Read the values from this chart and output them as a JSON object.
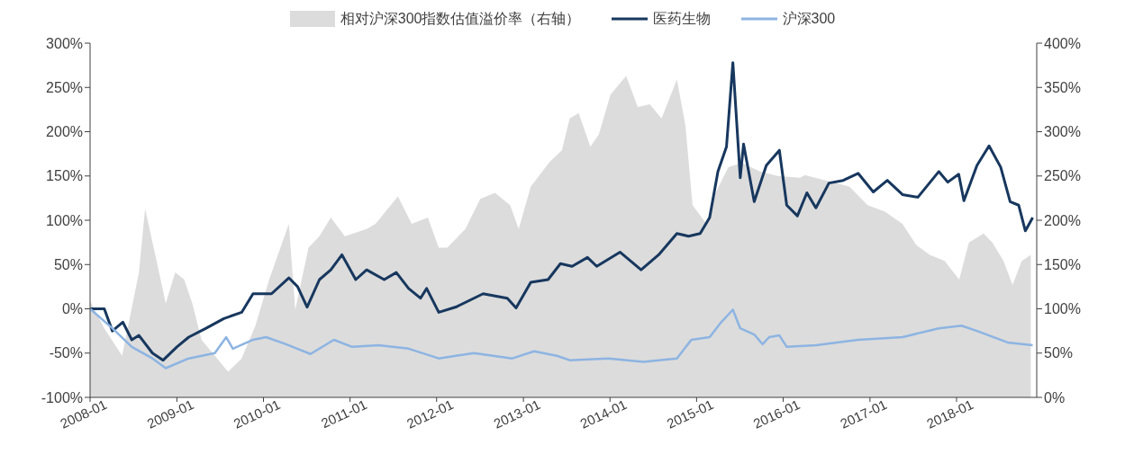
{
  "chart_data": {
    "type": "line",
    "legend": "top",
    "xlim": [
      "2008-01-01",
      "2018-12-05"
    ],
    "xticks": [
      "2008-01",
      "2009-01",
      "2010-01",
      "2011-01",
      "2012-01",
      "2013-01",
      "2014-01",
      "2015-01",
      "2016-01",
      "2017-01",
      "2018-01"
    ],
    "ylim": [
      -100,
      300
    ],
    "yticks": [
      {
        "value": -100,
        "label": "-100%"
      },
      {
        "value": -50,
        "label": "-50%"
      },
      {
        "value": 0,
        "label": "0%"
      },
      {
        "value": 50,
        "label": "50%"
      },
      {
        "value": 100,
        "label": "100%"
      },
      {
        "value": 150,
        "label": "150%"
      },
      {
        "value": 200,
        "label": "200%"
      },
      {
        "value": 250,
        "label": "250%"
      },
      {
        "value": 300,
        "label": "300%"
      }
    ],
    "y2lim": [
      0,
      400
    ],
    "y2ticks": [
      {
        "value": 0,
        "label": "0%"
      },
      {
        "value": 50,
        "label": "50%"
      },
      {
        "value": 100,
        "label": "100%"
      },
      {
        "value": 150,
        "label": "150%"
      },
      {
        "value": 200,
        "label": "200%"
      },
      {
        "value": 250,
        "label": "250%"
      },
      {
        "value": 300,
        "label": "300%"
      },
      {
        "value": 350,
        "label": "350%"
      },
      {
        "value": 400,
        "label": "400%"
      }
    ],
    "series": [
      {
        "name": "相对沪深300指数估值溢价率（右轴）",
        "type": "area",
        "axis": "y2",
        "color": "#dcdcdc",
        "x": [
          "2008-01-01",
          "2008-03-01",
          "2008-05-15",
          "2008-07-25",
          "2008-08-20",
          "2008-10-10",
          "2008-11-15",
          "2008-12-25",
          "2009-02-01",
          "2009-03-07",
          "2009-04-15",
          "2009-08-05",
          "2009-10-01",
          "2009-11-28",
          "2010-01-25",
          "2010-04-18",
          "2010-05-15",
          "2010-07-10",
          "2010-08-25",
          "2010-10-12",
          "2010-12-10",
          "2011-03-12",
          "2011-04-18",
          "2011-07-22",
          "2011-09-18",
          "2011-11-25",
          "2012-01-10",
          "2012-02-15",
          "2012-05-01",
          "2012-07-03",
          "2012-09-03",
          "2012-11-06",
          "2012-12-12",
          "2013-02-01",
          "2013-04-22",
          "2013-06-12",
          "2013-07-15",
          "2013-08-22",
          "2013-10-10",
          "2013-11-15",
          "2014-01-03",
          "2014-03-10",
          "2014-04-28",
          "2014-06-18",
          "2014-08-06",
          "2014-10-10",
          "2014-11-15",
          "2014-12-15",
          "2015-02-12",
          "2015-03-20",
          "2015-05-15",
          "2015-07-10",
          "2015-09-25",
          "2015-12-10",
          "2016-03-12",
          "2016-04-01",
          "2016-10-06",
          "2016-12-22",
          "2017-03-04",
          "2017-05-18",
          "2017-07-15",
          "2017-09-10",
          "2017-11-12",
          "2018-01-12",
          "2018-02-22",
          "2018-04-25",
          "2018-06-01",
          "2018-07-18",
          "2018-08-25",
          "2018-10-03",
          "2018-11-10"
        ],
        "values": [
          109,
          78,
          47,
          141,
          213,
          151,
          106,
          141,
          133,
          106,
          65,
          29,
          44,
          81,
          133,
          196,
          99,
          169,
          182,
          203,
          182,
          190,
          196,
          227,
          196,
          203,
          169,
          169,
          190,
          224,
          231,
          217,
          190,
          238,
          266,
          279,
          315,
          321,
          283,
          297,
          342,
          363,
          328,
          331,
          315,
          359,
          307,
          217,
          196,
          230,
          260,
          265,
          255,
          250,
          248,
          251,
          238,
          217,
          210,
          196,
          172,
          161,
          154,
          133,
          175,
          185,
          175,
          154,
          127,
          154,
          161
        ]
      },
      {
        "name": "医药生物",
        "color": "#17375e",
        "x": [
          "2008-01-01",
          "2008-03-01",
          "2008-04-04",
          "2008-05-18",
          "2008-06-25",
          "2008-07-25",
          "2008-09-20",
          "2008-11-04",
          "2009-01-01",
          "2009-02-20",
          "2009-05-04",
          "2009-07-18",
          "2009-10-01",
          "2009-11-18",
          "2010-02-04",
          "2010-04-18",
          "2010-05-25",
          "2010-07-04",
          "2010-08-25",
          "2010-10-12",
          "2010-11-28",
          "2011-01-25",
          "2011-03-12",
          "2011-05-25",
          "2011-07-15",
          "2011-09-05",
          "2011-10-25",
          "2011-11-20",
          "2012-01-10",
          "2012-03-22",
          "2012-07-15",
          "2012-10-25",
          "2012-12-01",
          "2013-02-01",
          "2013-04-15",
          "2013-06-06",
          "2013-07-25",
          "2013-09-28",
          "2013-11-06",
          "2014-02-12",
          "2014-05-12",
          "2014-07-25",
          "2014-10-10",
          "2014-11-28",
          "2015-01-16",
          "2015-02-25",
          "2015-04-01",
          "2015-05-07",
          "2015-06-03",
          "2015-07-04",
          "2015-07-18",
          "2015-09-01",
          "2015-10-22",
          "2015-12-16",
          "2016-01-16",
          "2016-03-01",
          "2016-04-10",
          "2016-05-18",
          "2016-07-12",
          "2016-09-10",
          "2016-11-12",
          "2017-01-15",
          "2017-03-15",
          "2017-05-18",
          "2017-07-22",
          "2017-10-18",
          "2017-11-25",
          "2018-01-10",
          "2018-02-01",
          "2018-03-28",
          "2018-05-18",
          "2018-07-06",
          "2018-08-15",
          "2018-09-20",
          "2018-10-18",
          "2018-11-18"
        ],
        "values": [
          0,
          0,
          -25,
          -15,
          -35,
          -30,
          -50,
          -58,
          -43,
          -32,
          -22,
          -11,
          -4,
          17,
          17,
          35,
          25,
          2,
          33,
          44,
          61,
          33,
          44,
          33,
          41,
          23,
          12,
          23,
          -4,
          2,
          17,
          12,
          1,
          30,
          33,
          51,
          48,
          58,
          48,
          64,
          44,
          61,
          85,
          82,
          85,
          103,
          155,
          183,
          278,
          148,
          186,
          121,
          162,
          179,
          117,
          105,
          131,
          114,
          142,
          145,
          153,
          132,
          145,
          129,
          126,
          155,
          143,
          152,
          122,
          162,
          184,
          160,
          121,
          117,
          88,
          103
        ]
      },
      {
        "name": "沪深300",
        "color": "#8db4e2",
        "x": [
          "2008-01-01",
          "2008-04-04",
          "2008-06-25",
          "2008-09-20",
          "2008-11-15",
          "2009-02-20",
          "2009-06-10",
          "2009-07-28",
          "2009-08-25",
          "2009-11-18",
          "2010-01-12",
          "2010-04-06",
          "2010-07-18",
          "2010-10-25",
          "2011-01-10",
          "2011-05-01",
          "2011-09-05",
          "2012-01-10",
          "2012-03-22",
          "2012-06-06",
          "2012-11-15",
          "2013-02-15",
          "2013-05-22",
          "2013-07-15",
          "2013-12-25",
          "2014-05-22",
          "2014-10-10",
          "2014-12-10",
          "2015-02-25",
          "2015-04-15",
          "2015-06-03",
          "2015-07-04",
          "2015-09-01",
          "2015-10-06",
          "2015-11-03",
          "2015-12-16",
          "2016-01-16",
          "2016-05-18",
          "2016-11-12",
          "2017-05-18",
          "2017-10-18",
          "2018-01-22",
          "2018-03-28",
          "2018-08-04",
          "2018-11-18"
        ],
        "values": [
          0,
          -22,
          -43,
          -56,
          -67,
          -56,
          -50,
          -32,
          -45,
          -35,
          -32,
          -40,
          -51,
          -35,
          -43,
          -41,
          -45,
          -56,
          -53,
          -50,
          -56,
          -48,
          -53,
          -58,
          -56,
          -60,
          -56,
          -35,
          -32,
          -15,
          -1,
          -22,
          -29,
          -40,
          -32,
          -30,
          -43,
          -41,
          -35,
          -32,
          -22,
          -19,
          -25,
          -38,
          -41
        ]
      }
    ]
  }
}
